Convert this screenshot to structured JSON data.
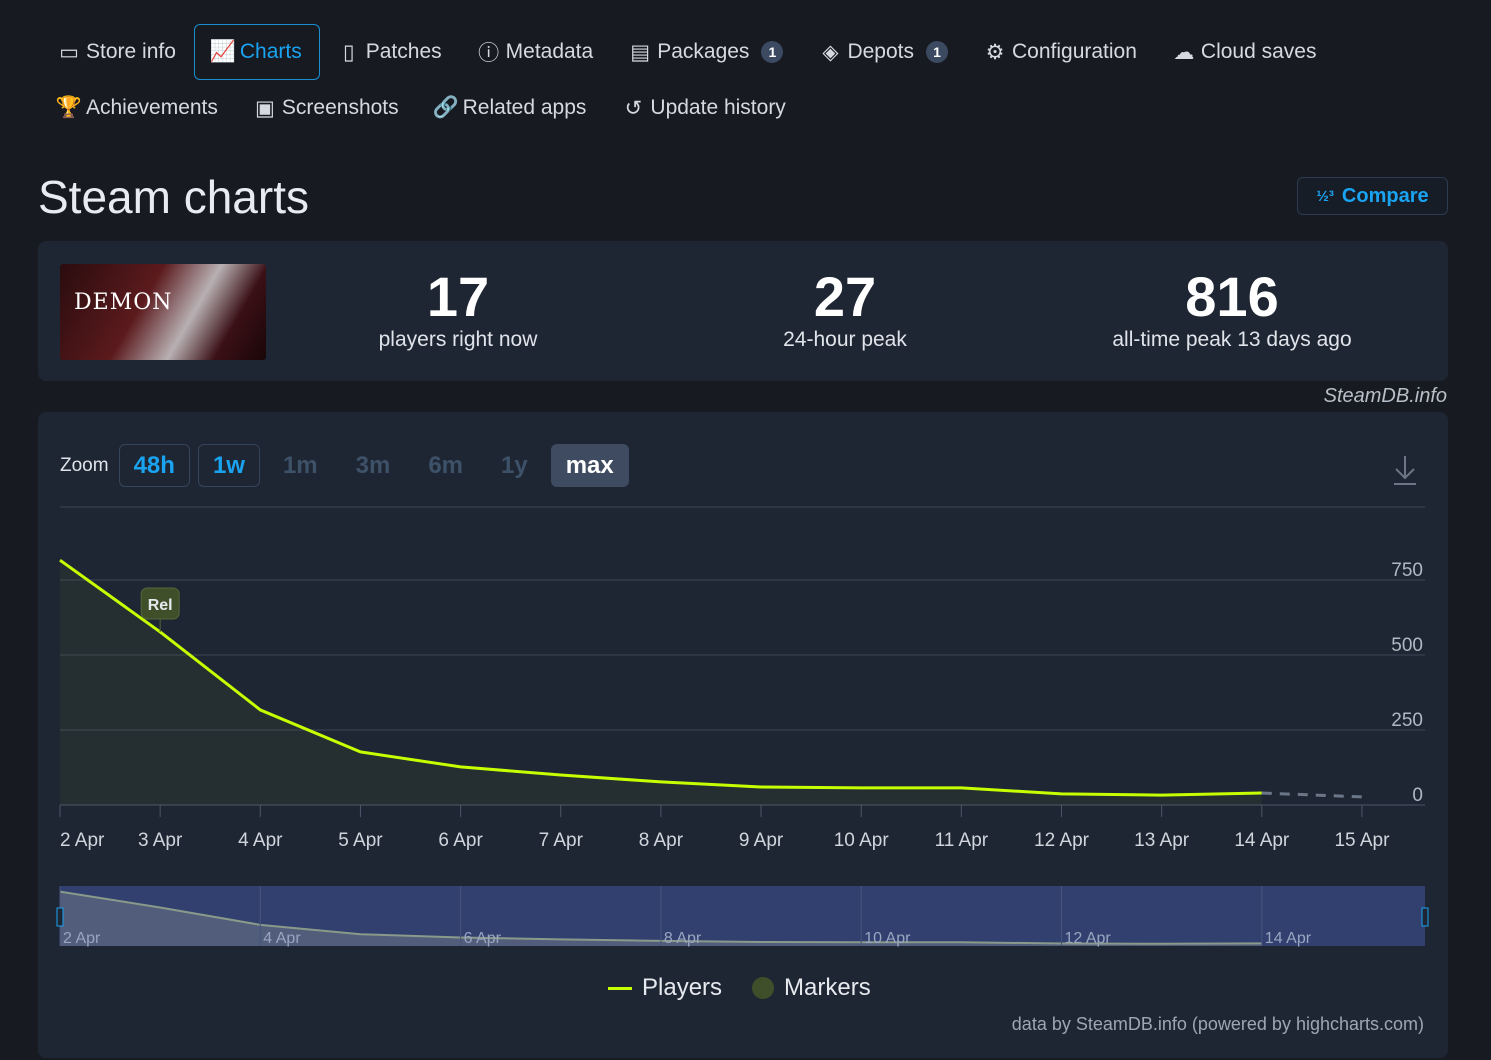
{
  "nav": {
    "row1": [
      {
        "label": "Store info",
        "icon": "store-icon"
      },
      {
        "label": "Charts",
        "icon": "chart-line-icon",
        "active": true
      },
      {
        "label": "Patches",
        "icon": "patches-icon"
      },
      {
        "label": "Metadata",
        "icon": "info-icon"
      },
      {
        "label": "Packages",
        "icon": "package-icon",
        "badge": "1"
      },
      {
        "label": "Depots",
        "icon": "layers-icon",
        "badge": "1"
      },
      {
        "label": "Configuration",
        "icon": "gear-icon"
      },
      {
        "label": "Cloud saves",
        "icon": "cloud-icon"
      }
    ],
    "row2": [
      {
        "label": "Achievements",
        "icon": "trophy-icon"
      },
      {
        "label": "Screenshots",
        "icon": "image-icon"
      },
      {
        "label": "Related apps",
        "icon": "link-icon"
      },
      {
        "label": "Update history",
        "icon": "history-icon"
      }
    ]
  },
  "page_title": "Steam charts",
  "compare_label": "Compare",
  "game_cover_text": "DEMON",
  "stats": [
    {
      "value": "17",
      "label": "players right now"
    },
    {
      "value": "27",
      "label": "24-hour peak"
    },
    {
      "value": "816",
      "label": "all-time peak 13 days ago"
    }
  ],
  "credit": "SteamDB.info",
  "zoom": {
    "label": "Zoom",
    "options": [
      "48h",
      "1w",
      "1m",
      "3m",
      "6m",
      "1y",
      "max"
    ],
    "enabled": [
      "48h",
      "1w"
    ],
    "selected": "max"
  },
  "colors": {
    "accent": "#1aa3f0",
    "players": "#c6ff00",
    "marker": "#3f4f2a"
  },
  "chart_data": {
    "type": "line",
    "x": [
      "2 Apr",
      "3 Apr",
      "4 Apr",
      "5 Apr",
      "6 Apr",
      "7 Apr",
      "8 Apr",
      "9 Apr",
      "10 Apr",
      "11 Apr",
      "12 Apr",
      "13 Apr",
      "14 Apr",
      "15 Apr"
    ],
    "series": [
      {
        "name": "Players",
        "values": [
          816,
          577,
          317,
          177,
          127,
          100,
          77,
          60,
          57,
          57,
          37,
          33,
          40,
          27
        ],
        "dashed_last": true
      }
    ],
    "markers": [
      {
        "x": "3 Apr",
        "label": "Rel"
      }
    ],
    "yticks": [
      0,
      250,
      500,
      750
    ],
    "ylim": [
      0,
      900
    ],
    "grid": true,
    "legend": "bottom",
    "navigator_labels": [
      "2 Apr",
      "4 Apr",
      "6 Apr",
      "8 Apr",
      "10 Apr",
      "12 Apr",
      "14 Apr"
    ],
    "legend_items": [
      "Players",
      "Markers"
    ]
  },
  "footer": "data by SteamDB.info (powered by highcharts.com)"
}
